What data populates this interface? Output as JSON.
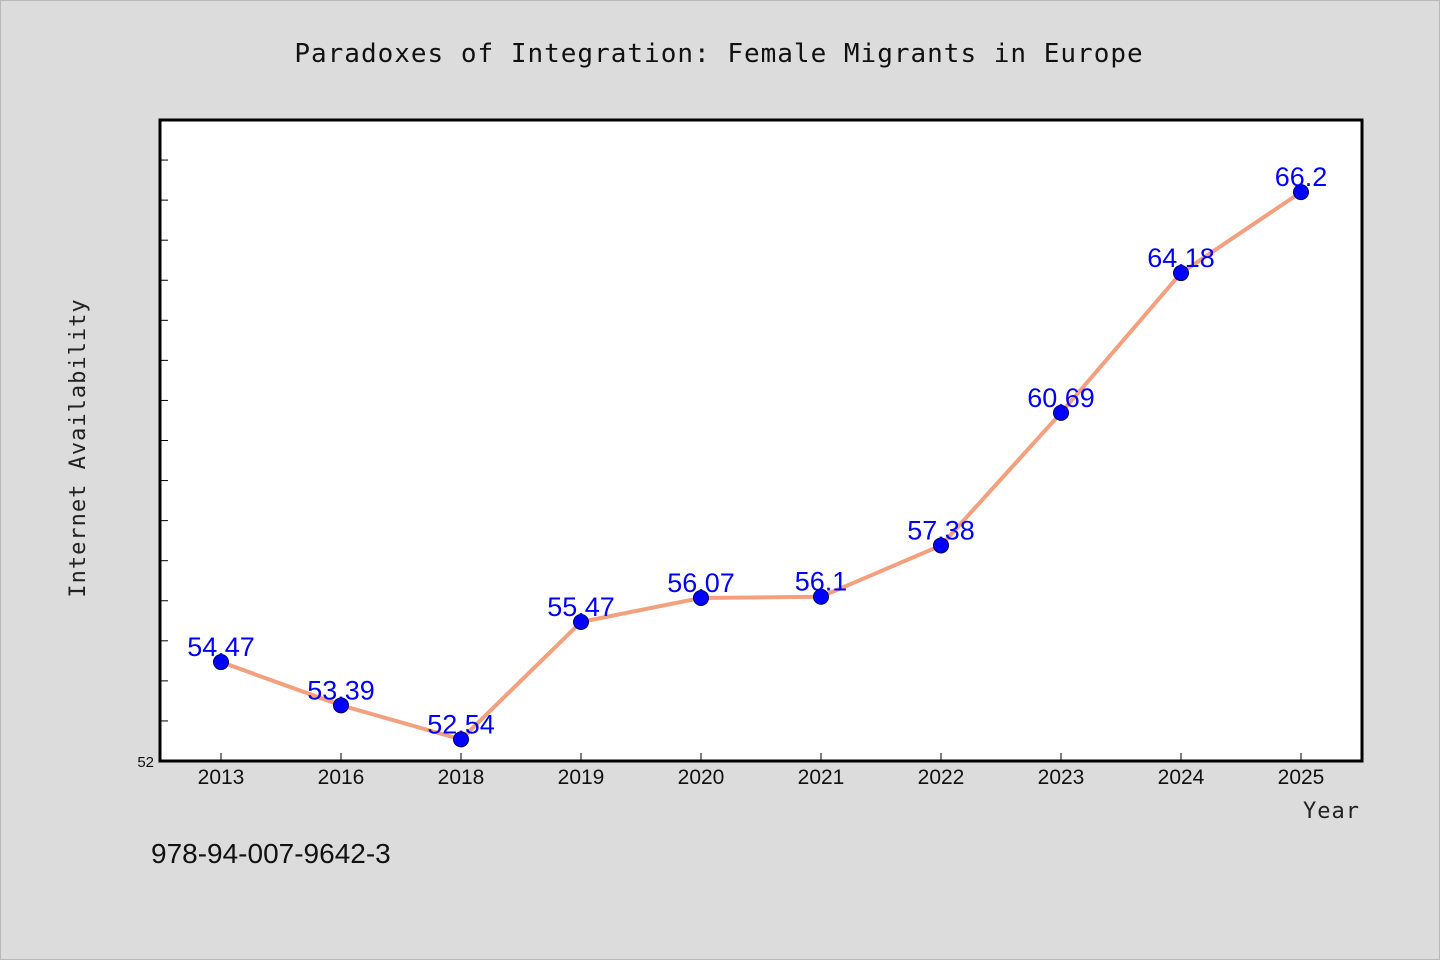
{
  "chart_data": {
    "type": "line",
    "title": "Paradoxes of Integration: Female Migrants in Europe",
    "xlabel": "Year",
    "ylabel": "Internet Availability",
    "categories": [
      "2013",
      "2016",
      "2018",
      "2019",
      "2020",
      "2021",
      "2022",
      "2023",
      "2024",
      "2025"
    ],
    "series": [
      {
        "values": [
          54.47,
          53.39,
          52.54,
          55.47,
          56.07,
          56.1,
          57.38,
          60.69,
          64.18,
          66.2
        ],
        "line_color": "#f4a07e",
        "marker_color": "#0000ff"
      }
    ],
    "data_labels": [
      "54.47",
      "53.39",
      "52.54",
      "55.47",
      "56.07",
      "56.1",
      "57.38",
      "60.69",
      "64.18",
      "66.2"
    ],
    "y_tick_labels": [
      "52"
    ],
    "ylim": [
      52,
      68
    ],
    "y_minor_step": 1,
    "grid": false,
    "legend": "none"
  },
  "footer": {
    "isbn": "978-94-007-9642-3"
  },
  "colors": {
    "background": "#dcdcdc",
    "plot_background": "#ffffff",
    "axis": "#000000",
    "label": "#0000ff"
  }
}
